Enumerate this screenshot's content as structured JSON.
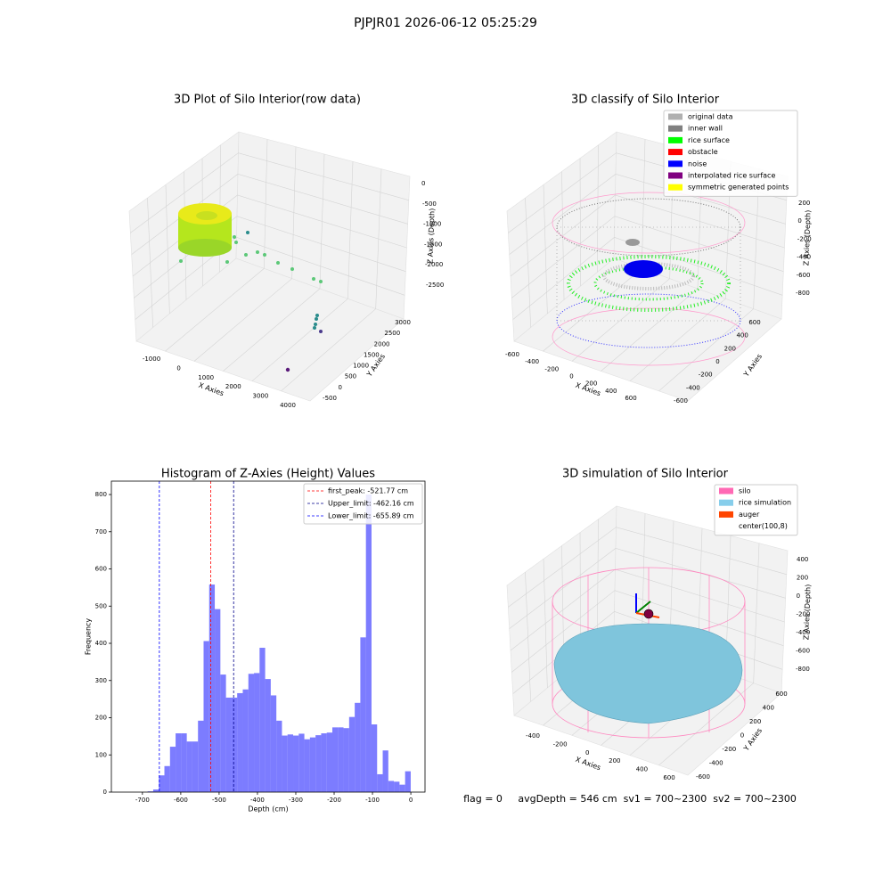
{
  "title": "PJPJR01 2026-06-12 05:25:29",
  "footer": "flag = 0     avgDepth = 546 cm  sv1 = 700~2300  sv2 = 700~2300",
  "chart_data": [
    {
      "type": "scatter3d",
      "title": "3D Plot of Silo Interior(row data)",
      "xlabel": "X Axies",
      "ylabel": "Y Axies",
      "zlabel": "Z Axies (Depth)",
      "xticks": [
        -1000,
        0,
        1000,
        2000,
        3000,
        4000
      ],
      "yticks": [
        -500,
        0,
        500,
        1000,
        1500,
        2000,
        2500,
        3000
      ],
      "zticks": [
        0,
        -500,
        -1000,
        -1500,
        -2000,
        -2500
      ]
    },
    {
      "type": "scatter3d",
      "title": "3D classify of Silo Interior",
      "xlabel": "X Axies",
      "ylabel": "Y Axies",
      "zlabel": "Z Axies (Depth)",
      "xticks": [
        -600,
        -400,
        -200,
        0,
        200,
        400,
        600
      ],
      "yticks": [
        -600,
        -400,
        -200,
        0,
        200,
        400,
        600
      ],
      "zticks": [
        200,
        0,
        -200,
        -400,
        -600,
        -800
      ],
      "legend": [
        {
          "name": "original data",
          "color": "#b0b0b0"
        },
        {
          "name": "inner wall",
          "color": "#808080"
        },
        {
          "name": "rice surface",
          "color": "#00ff00"
        },
        {
          "name": "obstacle",
          "color": "#ff0000"
        },
        {
          "name": "noise",
          "color": "#0000ff"
        },
        {
          "name": "interpolated rice surface",
          "color": "#800080"
        },
        {
          "name": "symmetric generated points",
          "color": "#ffff00"
        }
      ]
    },
    {
      "type": "histogram",
      "title": "Histogram of Z-Axies (Height) Values",
      "xlabel": "Depth (cm)",
      "ylabel": "Frequency",
      "color": "#5050ff",
      "bins": [
        -686.5,
        -671.9,
        -657.3,
        -642.7,
        -628.1,
        -613.5,
        -598.9,
        -584.3,
        -569.7,
        -555.1,
        -540.5,
        -525.9,
        -511.3,
        -496.7,
        -482.1,
        -467.5,
        -452.9,
        -438.3,
        -423.7,
        -409.1,
        -394.5,
        -379.9,
        -365.3,
        -350.7,
        -336.1,
        -321.5,
        -306.9,
        -292.3,
        -277.7,
        -263.1,
        -248.5,
        -233.9,
        -219.3,
        -204.7,
        -190.1,
        -175.5,
        -160.9,
        -146.3,
        -131.7,
        -117.1,
        -102.5,
        -87.9,
        -73.3,
        -58.7,
        -44.1,
        -29.5,
        -14.9,
        -0.3
      ],
      "values": [
        2,
        7,
        45,
        70,
        122,
        158,
        158,
        136,
        136,
        192,
        406,
        558,
        492,
        316,
        254,
        254,
        266,
        276,
        318,
        320,
        388,
        304,
        260,
        192,
        152,
        155,
        152,
        157,
        142,
        147,
        153,
        158,
        160,
        174,
        174,
        172,
        202,
        240,
        416,
        800,
        182,
        48,
        112,
        30,
        28,
        20,
        56
      ],
      "xlim": [
        -781,
        37
      ],
      "ylim": [
        0,
        836
      ],
      "xticks": [
        -700,
        -600,
        -500,
        -400,
        -300,
        -200,
        -100,
        0
      ],
      "yticks": [
        0,
        100,
        200,
        300,
        400,
        500,
        600,
        700,
        800
      ],
      "lines": [
        {
          "name": "first_peak: -521.77 cm",
          "value": -521.77,
          "color": "#ff0000"
        },
        {
          "name": "Upper_limit: -462.16 cm",
          "value": -462.16,
          "color": "#00008b"
        },
        {
          "name": "Lower_limit: -655.89 cm",
          "value": -655.89,
          "color": "#0000ff"
        }
      ]
    },
    {
      "type": "surface3d",
      "title": "3D simulation of Silo Interior",
      "xlabel": "X Axies",
      "ylabel": "Y Axies",
      "zlabel": "Z Axies (Depth)",
      "xticks": [
        -400,
        -200,
        0,
        200,
        400,
        600
      ],
      "yticks": [
        -600,
        -400,
        -200,
        0,
        200,
        400,
        600
      ],
      "zticks": [
        400,
        200,
        0,
        -200,
        -400,
        -600,
        -800
      ],
      "legend": [
        {
          "name": "silo",
          "color": "#ff69b4"
        },
        {
          "name": "rice simulation",
          "color": "#87ceeb"
        },
        {
          "name": "auger",
          "color": "#ff4500"
        },
        {
          "name": "center(100,8)",
          "color": "#ffffff"
        }
      ]
    }
  ]
}
